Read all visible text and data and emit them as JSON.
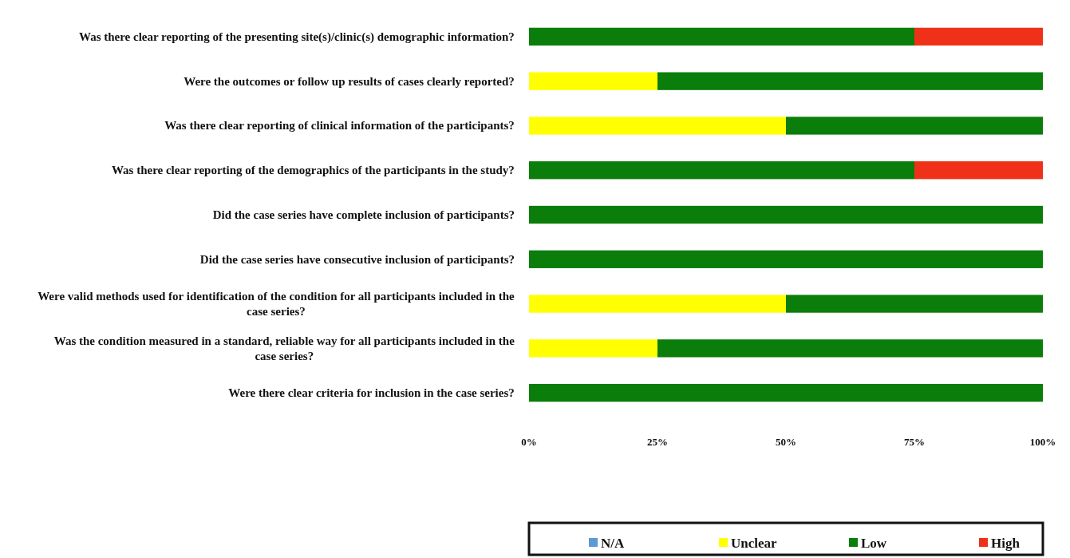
{
  "chart_data": {
    "type": "bar",
    "orientation": "horizontal",
    "stacked": true,
    "categories": [
      "Was there clear reporting of the presenting site(s)/clinic(s) demographic information?",
      "Were the outcomes or follow up results of cases clearly reported?",
      "Was there clear reporting of clinical information of the participants?",
      "Was there clear reporting of the demographics of the participants in the study?",
      "Did the case series have complete inclusion of participants?",
      "Did the case series have consecutive inclusion of participants?",
      "Were valid methods used for identification of the condition for all participants included in the case series?",
      "Was the condition measured in a standard, reliable way for all participants included in the case series?",
      "Were there clear criteria for inclusion in the case series?"
    ],
    "series": [
      {
        "name": "N/A",
        "color": "#5b9bd5",
        "values": [
          0,
          0,
          0,
          0,
          0,
          0,
          0,
          0,
          0
        ]
      },
      {
        "name": "Unclear",
        "color": "#ffff00",
        "values": [
          0,
          25,
          50,
          0,
          0,
          0,
          50,
          25,
          0
        ]
      },
      {
        "name": "Low",
        "color": "#0a7d0a",
        "values": [
          75,
          75,
          50,
          75,
          100,
          100,
          50,
          75,
          100
        ]
      },
      {
        "name": "High",
        "color": "#f0311a",
        "values": [
          25,
          0,
          0,
          25,
          0,
          0,
          0,
          0,
          0
        ]
      }
    ],
    "xlim": [
      0,
      100
    ],
    "xticks": [
      {
        "value": 0,
        "label": "0%"
      },
      {
        "value": 25,
        "label": "25%"
      },
      {
        "value": 50,
        "label": "50%"
      },
      {
        "value": 75,
        "label": "75%"
      },
      {
        "value": 100,
        "label": "100%"
      }
    ],
    "grid": false,
    "legend": "bottom"
  }
}
